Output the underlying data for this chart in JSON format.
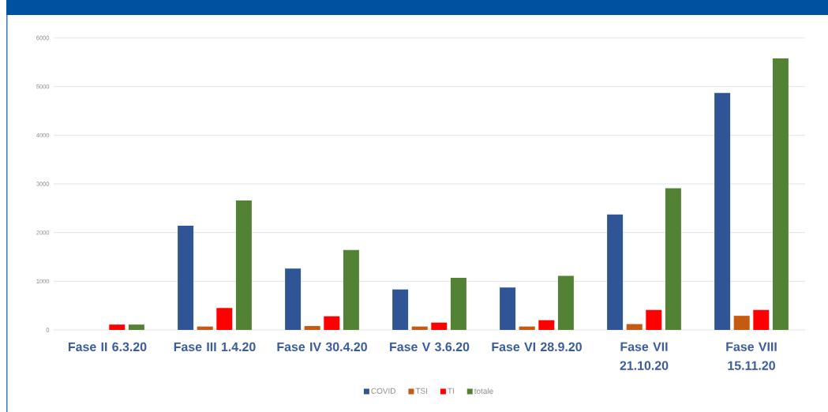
{
  "chart_data": {
    "type": "bar",
    "categories": [
      "Fase II 6.3.20",
      "Fase III 1.4.20",
      "Fase IV 30.4.20",
      "Fase V 3.6.20",
      "Fase VI 28.9.20",
      "Fase VII 21.10.20",
      "Fase VIII 15.11.20"
    ],
    "series": [
      {
        "name": "COVID",
        "color": "#2f5597",
        "values": [
          null,
          2140,
          1260,
          830,
          870,
          2370,
          4870
        ]
      },
      {
        "name": "TSI",
        "color": "#c55a11",
        "values": [
          null,
          70,
          80,
          70,
          70,
          120,
          290
        ]
      },
      {
        "name": "TI",
        "color": "#ff0000",
        "values": [
          110,
          450,
          280,
          150,
          200,
          410,
          410
        ]
      },
      {
        "name": "totale",
        "color": "#548235",
        "values": [
          110,
          2660,
          1640,
          1070,
          1110,
          2910,
          5580
        ]
      }
    ],
    "ylim": [
      0,
      6000
    ],
    "yticks": [
      0,
      1000,
      2000,
      3000,
      4000,
      5000,
      6000
    ],
    "grid": "y",
    "legend": "bottom"
  }
}
